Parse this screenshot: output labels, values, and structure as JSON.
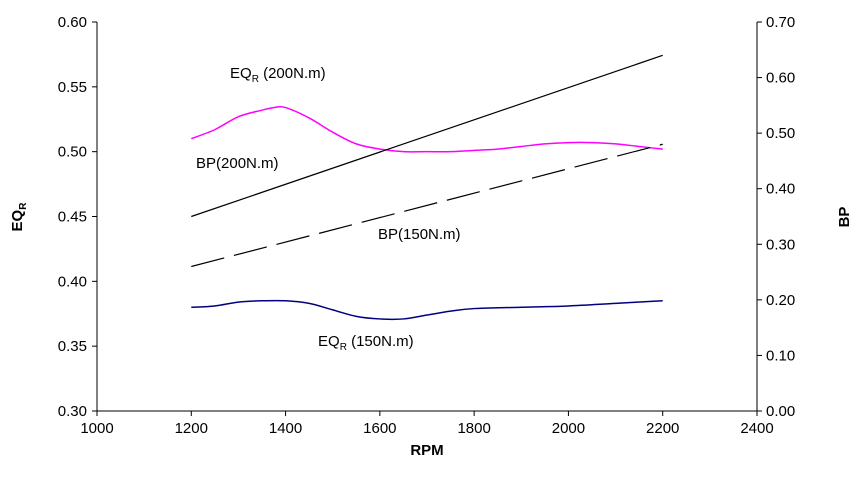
{
  "chart_data": {
    "type": "line",
    "xlabel": "RPM",
    "ylabel": "EQ",
    "ylabel_sub": "R",
    "y2label": "BP",
    "xlim": [
      1000,
      2400
    ],
    "ylim": [
      0.3,
      0.6
    ],
    "y2lim": [
      0.0,
      0.7
    ],
    "x_ticks": [
      "1000",
      "1200",
      "1400",
      "1600",
      "1800",
      "2000",
      "2200",
      "2400"
    ],
    "y_ticks": [
      "0.30",
      "0.35",
      "0.40",
      "0.45",
      "0.50",
      "0.55",
      "0.60"
    ],
    "y2_ticks": [
      "0.00",
      "0.10",
      "0.20",
      "0.30",
      "0.40",
      "0.50",
      "0.60",
      "0.70"
    ],
    "legend": "none",
    "grid": false,
    "series": [
      {
        "key": "eqr200",
        "axis": "left",
        "color": "#ff00ff",
        "dash": "solid",
        "x": [
          1200,
          1250,
          1300,
          1350,
          1375,
          1400,
          1450,
          1500,
          1550,
          1600,
          1650,
          1700,
          1750,
          1800,
          1850,
          1900,
          1950,
          2000,
          2050,
          2100,
          2150,
          2200
        ],
        "y": [
          0.51,
          0.517,
          0.527,
          0.532,
          0.534,
          0.534,
          0.526,
          0.515,
          0.506,
          0.502,
          0.5,
          0.5,
          0.5,
          0.501,
          0.502,
          0.504,
          0.506,
          0.507,
          0.507,
          0.506,
          0.504,
          0.502
        ]
      },
      {
        "key": "eqr150",
        "axis": "left",
        "color": "#000080",
        "dash": "solid",
        "x": [
          1200,
          1250,
          1300,
          1350,
          1400,
          1450,
          1500,
          1550,
          1600,
          1650,
          1700,
          1750,
          1800,
          1900,
          2000,
          2100,
          2200
        ],
        "y": [
          0.38,
          0.381,
          0.384,
          0.385,
          0.385,
          0.383,
          0.378,
          0.373,
          0.371,
          0.371,
          0.374,
          0.377,
          0.379,
          0.38,
          0.381,
          0.383,
          0.385
        ]
      },
      {
        "key": "bp200",
        "axis": "right",
        "color": "#000000",
        "dash": "solid",
        "x": [
          1200,
          2200
        ],
        "y": [
          0.35,
          0.64
        ]
      },
      {
        "key": "bp150",
        "axis": "right",
        "color": "#000000",
        "dash": "long-dash",
        "x": [
          1200,
          2200
        ],
        "y": [
          0.26,
          0.48
        ]
      }
    ],
    "annotations": [
      {
        "main": "EQ",
        "sub": "R",
        "rest": " (200N.m)"
      },
      {
        "main": "BP(200N.m)",
        "sub": "",
        "rest": ""
      },
      {
        "main": "BP(150N.m)",
        "sub": "",
        "rest": ""
      },
      {
        "main": "EQ",
        "sub": "R",
        "rest": " (150N.m)"
      }
    ]
  }
}
